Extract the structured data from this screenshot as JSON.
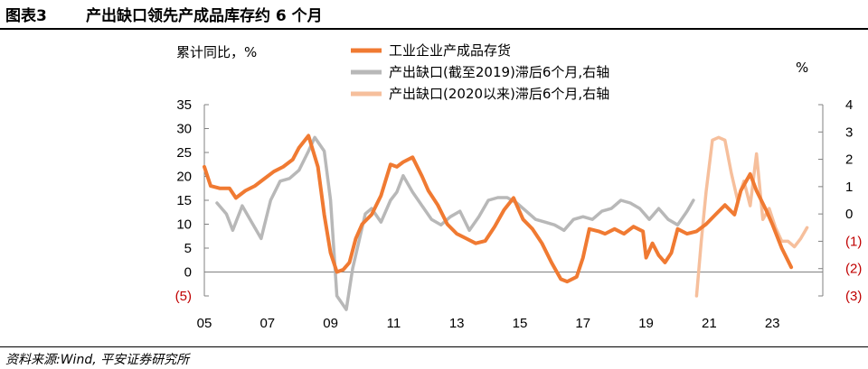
{
  "header": {
    "figure_number": "图表3",
    "title": "产出缺口领先产成品库存约 6 个月"
  },
  "source": "资料来源:Wind, 平安证券研究所",
  "colors": {
    "inventory": "#f07a32",
    "gap_pre2019": "#b8b8b8",
    "gap_post2020": "#f6bf9c",
    "negative_tick": "#c00000",
    "axis": "#808080"
  },
  "chart_data": {
    "type": "line",
    "title": "",
    "ylabel_left": "累计同比，%",
    "ylabel_right": "%",
    "ylim_left": [
      -5,
      35
    ],
    "ylim_right": [
      -3,
      4
    ],
    "yticks_left": [
      "(5)",
      "0",
      "5",
      "10",
      "15",
      "20",
      "25",
      "30",
      "35"
    ],
    "yticks_right": [
      "(3)",
      "(2)",
      "(1)",
      "0",
      "1",
      "2",
      "3",
      "4"
    ],
    "xlim": [
      2005,
      2024.6
    ],
    "xticks": [
      "05",
      "07",
      "09",
      "11",
      "13",
      "15",
      "17",
      "19",
      "21",
      "23"
    ],
    "legend_position": "top-center",
    "series": [
      {
        "name": "工业企业产成品存货",
        "axis": "left",
        "x": [
          2005.0,
          2005.2,
          2005.5,
          2005.8,
          2006.0,
          2006.3,
          2006.6,
          2006.9,
          2007.2,
          2007.5,
          2007.8,
          2008.0,
          2008.3,
          2008.6,
          2008.8,
          2009.0,
          2009.2,
          2009.4,
          2009.6,
          2009.8,
          2010.0,
          2010.3,
          2010.6,
          2010.9,
          2011.1,
          2011.3,
          2011.6,
          2011.9,
          2012.1,
          2012.4,
          2012.7,
          2013.0,
          2013.3,
          2013.6,
          2013.9,
          2014.2,
          2014.5,
          2014.8,
          2015.1,
          2015.4,
          2015.7,
          2016.0,
          2016.3,
          2016.5,
          2016.8,
          2017.0,
          2017.2,
          2017.5,
          2017.7,
          2018.0,
          2018.3,
          2018.6,
          2018.9,
          2019.0,
          2019.2,
          2019.4,
          2019.6,
          2019.8,
          2020.0,
          2020.3,
          2020.6,
          2020.9,
          2021.2,
          2021.5,
          2021.8,
          2022.0,
          2022.3,
          2022.5,
          2022.8,
          2023.0,
          2023.3,
          2023.6
        ],
        "values": [
          22,
          18,
          17.5,
          17.5,
          15.5,
          17,
          18,
          19.5,
          21,
          22,
          23.5,
          26,
          28.5,
          22,
          12,
          4,
          0,
          0.5,
          2,
          7,
          10,
          12,
          16,
          22.5,
          22,
          23,
          24,
          20,
          17,
          14,
          10,
          8,
          7,
          6,
          6.5,
          9.5,
          13,
          15.5,
          11,
          9,
          6,
          2,
          -1.5,
          -2,
          -1,
          3,
          9,
          8.5,
          8,
          9,
          8,
          9.5,
          8.5,
          3,
          6,
          3.5,
          2,
          4,
          9,
          8,
          8.5,
          10,
          12,
          14,
          12,
          17,
          20.5,
          17,
          13,
          10,
          5,
          1
        ]
      },
      {
        "name": "产出缺口(截至2019)滞后6个月,右轴",
        "axis": "right",
        "x": [
          2005.4,
          2005.7,
          2005.9,
          2006.2,
          2006.5,
          2006.8,
          2007.1,
          2007.4,
          2007.7,
          2008.0,
          2008.3,
          2008.5,
          2008.8,
          2009.0,
          2009.2,
          2009.5,
          2009.7,
          2009.9,
          2010.1,
          2010.3,
          2010.6,
          2010.9,
          2011.1,
          2011.3,
          2011.6,
          2011.9,
          2012.2,
          2012.5,
          2012.8,
          2013.1,
          2013.4,
          2013.7,
          2014.0,
          2014.3,
          2014.6,
          2014.9,
          2015.2,
          2015.5,
          2015.8,
          2016.1,
          2016.4,
          2016.7,
          2017.0,
          2017.3,
          2017.6,
          2017.9,
          2018.2,
          2018.5,
          2018.8,
          2019.1,
          2019.4,
          2019.7,
          2020.0,
          2020.3,
          2020.5
        ],
        "values": [
          0.4,
          0,
          -0.6,
          0.3,
          -0.3,
          -0.9,
          0.5,
          1.2,
          1.3,
          1.6,
          2.3,
          2.8,
          2.3,
          0.5,
          -3,
          -3.5,
          -2,
          -1,
          0,
          0.2,
          -0.3,
          0.5,
          0.8,
          1.4,
          0.8,
          0.3,
          -0.2,
          -0.4,
          -0.1,
          0.1,
          -0.6,
          -0.1,
          0.5,
          0.6,
          0.6,
          0.4,
          0.1,
          -0.2,
          -0.3,
          -0.4,
          -0.6,
          -0.2,
          -0.1,
          -0.2,
          0.1,
          0.2,
          0.5,
          0.4,
          0.2,
          -0.2,
          0.2,
          -0.2,
          -0.4,
          0.1,
          0.5
        ]
      },
      {
        "name": "产出缺口(2020以来)滞后6个月,右轴",
        "axis": "right",
        "x": [
          2020.6,
          2020.75,
          2020.9,
          2021.1,
          2021.3,
          2021.5,
          2021.7,
          2021.9,
          2022.1,
          2022.3,
          2022.5,
          2022.7,
          2022.9,
          2023.1,
          2023.3,
          2023.5,
          2023.7,
          2023.9,
          2024.1
        ],
        "values": [
          -3,
          -1,
          0.8,
          2.7,
          2.8,
          2.7,
          1.5,
          0.5,
          1.2,
          0.3,
          2.2,
          -0.2,
          0.2,
          -0.5,
          -1,
          -1,
          -1.2,
          -0.9,
          -0.5
        ]
      }
    ]
  }
}
